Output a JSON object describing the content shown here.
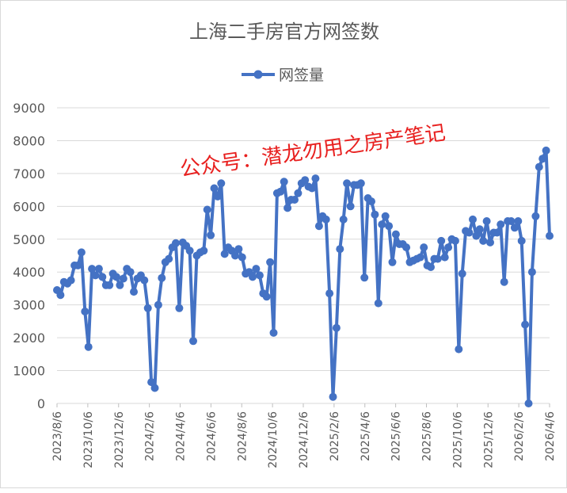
{
  "chart_data": {
    "type": "line",
    "title": "上海二手房官方网签数",
    "xlabel": "",
    "ylabel": "",
    "ylim": [
      0,
      9000
    ],
    "yticks": [
      0,
      1000,
      2000,
      3000,
      4000,
      5000,
      6000,
      7000,
      8000,
      9000
    ],
    "grid": true,
    "legend": "top",
    "xticks": [
      "2023/8/6",
      "2023/10/6",
      "2023/12/6",
      "2024/2/6",
      "2024/4/6",
      "2024/6/6",
      "2024/8/6",
      "2024/10/6",
      "2024/12/6",
      "2025/2/6",
      "2025/4/6",
      "2025/6/6",
      "2025/8/6",
      "2025/10/6",
      "2025/12/6",
      "2026/2/6",
      "2026/4/6"
    ],
    "series": [
      {
        "name": "网签量",
        "color": "#4472c4",
        "values": [
          3450,
          3300,
          3700,
          3650,
          3750,
          4200,
          4200,
          4600,
          2800,
          1720,
          4100,
          3900,
          4100,
          3850,
          3600,
          3600,
          3950,
          3850,
          3600,
          3800,
          4100,
          4000,
          3400,
          3800,
          3900,
          3750,
          2900,
          650,
          470,
          3000,
          3820,
          4300,
          4400,
          4750,
          4880,
          2900,
          4900,
          4800,
          4650,
          1900,
          4500,
          4600,
          4650,
          5900,
          5120,
          6550,
          6300,
          6700,
          4550,
          4750,
          4650,
          4500,
          4700,
          4450,
          3950,
          4000,
          3850,
          4100,
          3900,
          3350,
          3250,
          4300,
          2150,
          6400,
          6450,
          6750,
          5950,
          6200,
          6200,
          6400,
          6700,
          6800,
          6600,
          6550,
          6850,
          5400,
          5700,
          5600,
          3350,
          200,
          2300,
          4700,
          5600,
          6700,
          6000,
          6650,
          6650,
          6700,
          3830,
          6250,
          6150,
          5750,
          3050,
          5450,
          5700,
          5400,
          4300,
          5150,
          4850,
          4850,
          4750,
          4300,
          4350,
          4400,
          4450,
          4750,
          4200,
          4150,
          4400,
          4400,
          4950,
          4450,
          4750,
          5000,
          4950,
          1650,
          3950,
          5250,
          5200,
          5600,
          5100,
          5300,
          4950,
          5550,
          4900,
          5200,
          5200,
          5450,
          3700,
          5550,
          5550,
          5350,
          5550,
          4950,
          2400,
          0,
          4000,
          5700,
          7200,
          7450,
          7700,
          5100
        ]
      }
    ]
  },
  "watermark": "公众号：潜龙勿用之房产笔记"
}
